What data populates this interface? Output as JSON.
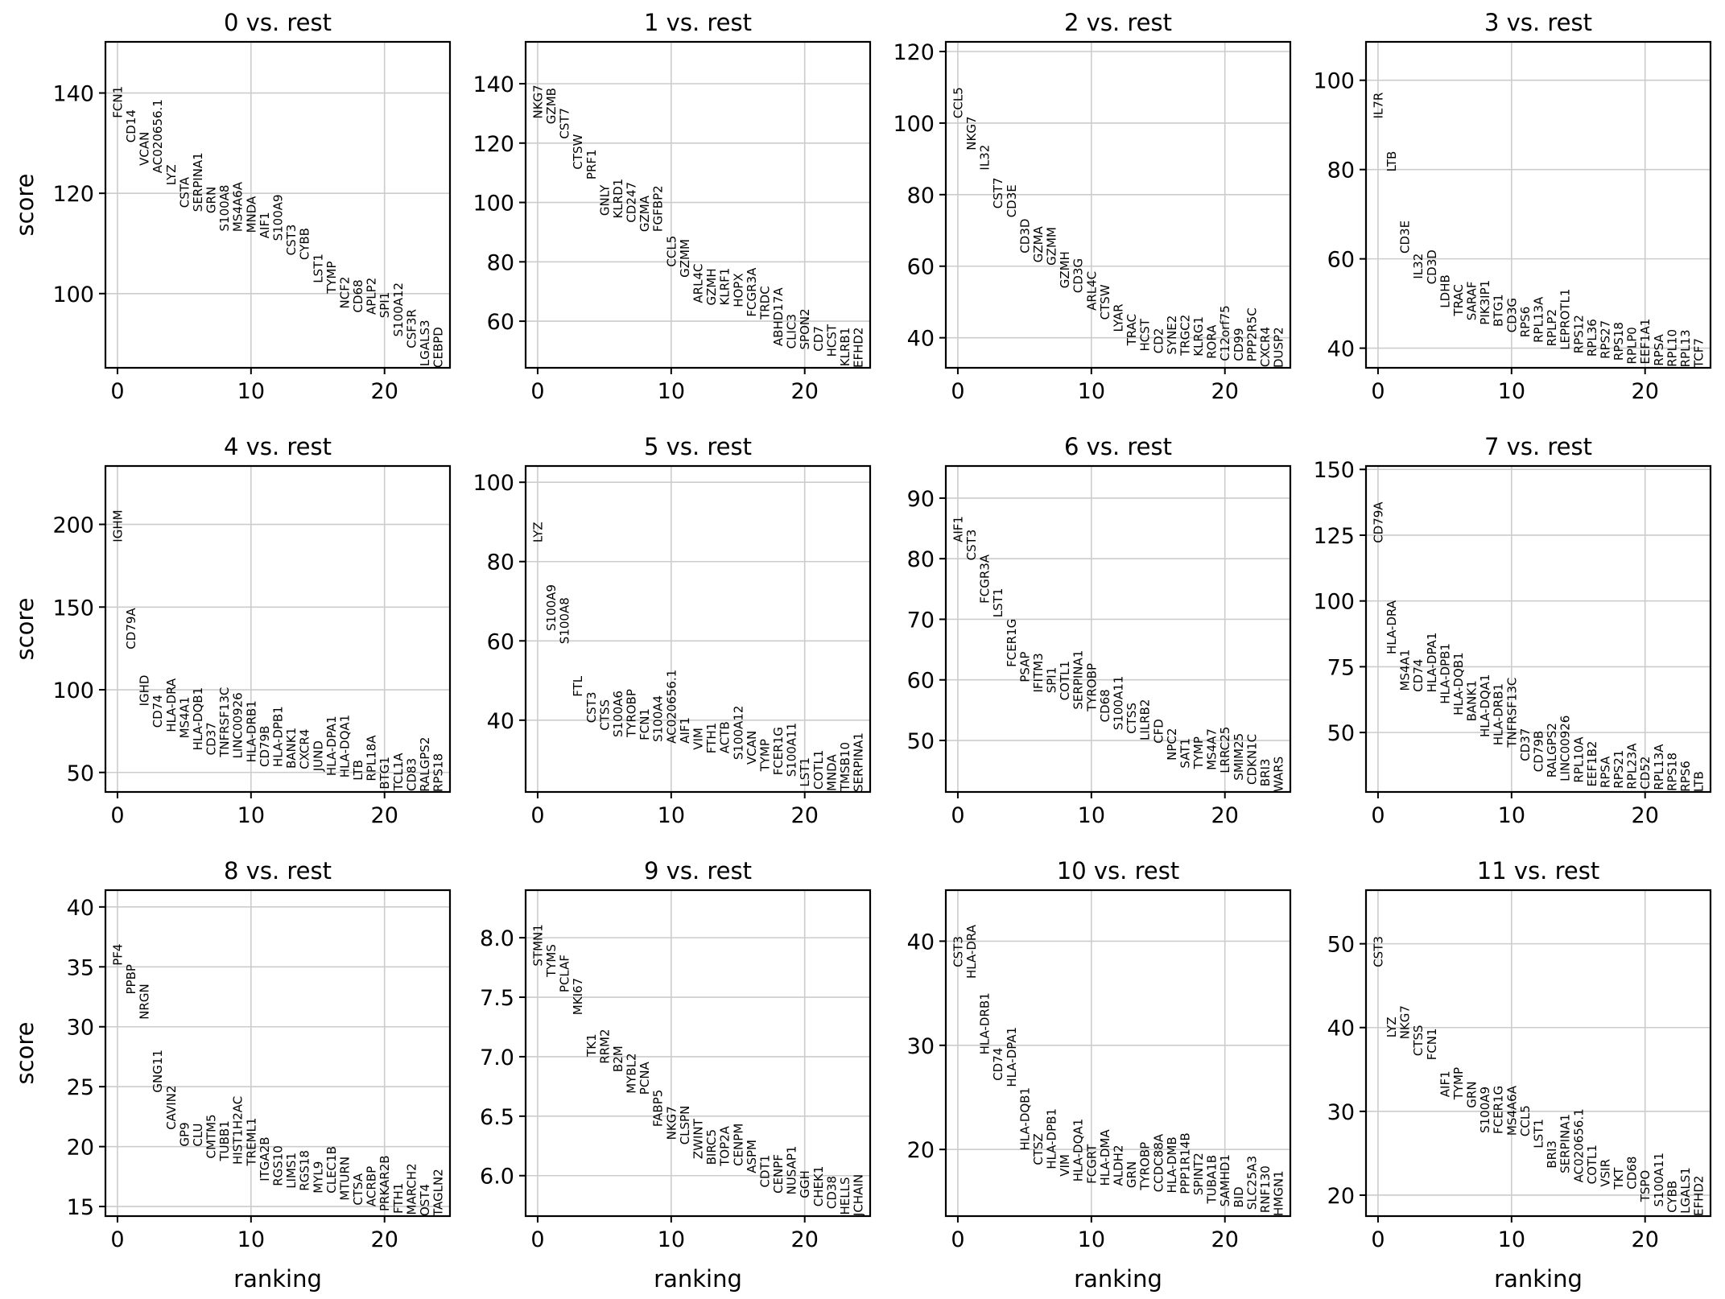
{
  "figure": {
    "x_axis_label": "ranking",
    "y_axis_label": "score",
    "text_color": "#000000",
    "grid_color": "#cccccc",
    "background": "#ffffff"
  },
  "chart_data": [
    {
      "type": "scatter",
      "title": "0 vs. rest",
      "xlabel": "",
      "ylabel": "score",
      "xlim": [
        -0.9,
        24.9
      ],
      "ylim": [
        85.2,
        150.2
      ],
      "xticks": [
        0,
        10,
        20
      ],
      "yticks": [
        100,
        120,
        140
      ],
      "grid": true,
      "genes": [
        "FCN1",
        "CD14",
        "VCAN",
        "AC020656.1",
        "LYZ",
        "CSTA",
        "SERPINA1",
        "GRN",
        "S100A8",
        "MS4A6A",
        "MNDA",
        "AIF1",
        "S100A9",
        "CST3",
        "CYBB",
        "LST1",
        "TYMP",
        "NCF2",
        "CD68",
        "APLP2",
        "SPI1",
        "S100A12",
        "CSF3R",
        "LGALS3",
        "CEBPD"
      ],
      "scores": [
        135.0,
        130.1,
        125.5,
        124.0,
        121.6,
        117.1,
        116.3,
        116.0,
        112.4,
        112.3,
        112.1,
        111.0,
        110.5,
        107.6,
        106.7,
        102.1,
        100.0,
        97.0,
        96.2,
        95.8,
        95.1,
        91.4,
        89.1,
        85.5,
        85.2
      ]
    },
    {
      "type": "scatter",
      "title": "1 vs. rest",
      "xlabel": "",
      "ylabel": "",
      "xlim": [
        -0.9,
        24.9
      ],
      "ylim": [
        44.3,
        154.1
      ],
      "xticks": [
        0,
        10,
        20
      ],
      "yticks": [
        60,
        80,
        100,
        120,
        140
      ],
      "grid": true,
      "genes": [
        "NKG7",
        "GZMB",
        "CST7",
        "CTSW",
        "PRF1",
        "GNLY",
        "KLRD1",
        "CD247",
        "GZMA",
        "FGFBP2",
        "CCL5",
        "GZMM",
        "ARL4C",
        "GZMH",
        "KLRF1",
        "HOPX",
        "FCGR3A",
        "TRDC",
        "ABHD17A",
        "CLIC3",
        "SPON2",
        "CD7",
        "HCST",
        "KLRB1",
        "EFHD2"
      ],
      "scores": [
        128.2,
        126.4,
        121.4,
        111.1,
        107.7,
        95.5,
        94.6,
        93.2,
        90.1,
        90.1,
        78.3,
        74.7,
        66.1,
        65.3,
        65.3,
        64.7,
        61.5,
        60.6,
        51.6,
        50.7,
        50.4,
        49.8,
        48.0,
        44.8,
        44.3
      ]
    },
    {
      "type": "scatter",
      "title": "2 vs. rest",
      "xlabel": "",
      "ylabel": "",
      "xlim": [
        -0.9,
        24.9
      ],
      "ylim": [
        31.6,
        122.7
      ],
      "xticks": [
        0,
        10,
        20
      ],
      "yticks": [
        40,
        60,
        80,
        100,
        120
      ],
      "grid": true,
      "genes": [
        "CCL5",
        "NKG7",
        "IL32",
        "CST7",
        "CD3E",
        "CD3D",
        "GZMA",
        "GZMM",
        "GZMH",
        "CD3G",
        "ARL4C",
        "CTSW",
        "LYAR",
        "TRAC",
        "HCST",
        "CD2",
        "SYNE2",
        "TRGC2",
        "KLRG1",
        "RORA",
        "C12orf75",
        "CD99",
        "PPP2R5C",
        "CXCR4",
        "DUSP2"
      ],
      "scores": [
        101.3,
        92.4,
        86.8,
        76.1,
        73.6,
        63.6,
        61.0,
        60.2,
        53.8,
        52.5,
        47.6,
        45.0,
        41.6,
        37.8,
        36.2,
        35.6,
        35.3,
        35.0,
        34.8,
        34.1,
        33.5,
        33.5,
        33.3,
        31.8,
        31.6
      ]
    },
    {
      "type": "scatter",
      "title": "3 vs. rest",
      "xlabel": "",
      "ylabel": "",
      "xlim": [
        -0.9,
        24.9
      ],
      "ylim": [
        35.6,
        108.6
      ],
      "xticks": [
        0,
        10,
        20
      ],
      "yticks": [
        40,
        60,
        80,
        100
      ],
      "grid": true,
      "genes": [
        "IL7R",
        "LTB",
        "CD3E",
        "IL32",
        "CD3D",
        "LDHB",
        "TRAC",
        "SARAF",
        "PIK3IP1",
        "BTG1",
        "CD3G",
        "RPS6",
        "RPL13A",
        "RPLP2",
        "LEPROTL1",
        "RPS12",
        "RPL36",
        "RPS27",
        "RPS18",
        "RPLP0",
        "EEF1A1",
        "RPSA",
        "RPL10",
        "RPL13",
        "TCF7"
      ],
      "scores": [
        91.4,
        79.5,
        61.2,
        55.5,
        54.3,
        49.0,
        47.2,
        46.2,
        45.2,
        44.8,
        43.5,
        42.4,
        41.2,
        40.4,
        39.6,
        38.8,
        38.1,
        37.6,
        37.2,
        36.4,
        36.4,
        36.0,
        35.8,
        35.7,
        35.6
      ]
    },
    {
      "type": "scatter",
      "title": "4 vs. rest",
      "xlabel": "",
      "ylabel": "score",
      "xlim": [
        -0.9,
        24.9
      ],
      "ylim": [
        38.2,
        235.3
      ],
      "xticks": [
        0,
        10,
        20
      ],
      "yticks": [
        50,
        100,
        150,
        200
      ],
      "grid": true,
      "genes": [
        "IGHM",
        "CD79A",
        "IGHD",
        "CD74",
        "HLA-DRA",
        "MS4A1",
        "HLA-DQB1",
        "CD37",
        "TNFRSF13C",
        "LINC00926",
        "HLA-DRB1",
        "CD79B",
        "HLA-DPB1",
        "BANK1",
        "CXCR4",
        "JUND",
        "HLA-DPA1",
        "HLA-DQA1",
        "LTB",
        "RPL18A",
        "BTG1",
        "TCL1A",
        "CD83",
        "RALGPS2",
        "RPS18"
      ],
      "scores": [
        189.2,
        124.5,
        90.1,
        77.0,
        74.3,
        70.6,
        63.3,
        60.4,
        59.2,
        58.4,
        56.0,
        53.3,
        53.3,
        52.3,
        51.9,
        50.7,
        47.9,
        46.8,
        45.1,
        44.7,
        39.8,
        39.0,
        38.7,
        38.3,
        38.2
      ]
    },
    {
      "type": "scatter",
      "title": "5 vs. rest",
      "xlabel": "",
      "ylabel": "",
      "xlim": [
        -0.9,
        24.9
      ],
      "ylim": [
        21.9,
        104.1
      ],
      "xticks": [
        0,
        10,
        20
      ],
      "yticks": [
        40,
        60,
        80,
        100
      ],
      "grid": true,
      "genes": [
        "LYZ",
        "S100A9",
        "S100A8",
        "FTL",
        "CST3",
        "CTSS",
        "S100A6",
        "TYROBP",
        "FCN1",
        "S100A4",
        "AC020656.1",
        "AIF1",
        "VIM",
        "FTH1",
        "ACTB",
        "S100A12",
        "VCAN",
        "TYMP",
        "FCER1G",
        "S100A11",
        "LST1",
        "COTL1",
        "MNDA",
        "TMSB10",
        "SERPINA1"
      ],
      "scores": [
        84.8,
        62.5,
        59.2,
        45.9,
        39.3,
        37.4,
        35.7,
        35.7,
        34.9,
        34.5,
        34.1,
        34.1,
        32.5,
        31.6,
        31.6,
        30.0,
        28.8,
        27.1,
        26.1,
        25.7,
        23.2,
        22.5,
        22.1,
        22.1,
        21.9
      ]
    },
    {
      "type": "scatter",
      "title": "6 vs. rest",
      "xlabel": "",
      "ylabel": "",
      "xlim": [
        -0.9,
        24.9
      ],
      "ylim": [
        41.5,
        95.3
      ],
      "xticks": [
        0,
        10,
        20
      ],
      "yticks": [
        50,
        60,
        70,
        80,
        90
      ],
      "grid": true,
      "genes": [
        "AIF1",
        "CST3",
        "FCGR3A",
        "LST1",
        "FCER1G",
        "PSAP",
        "IFITM3",
        "SPI1",
        "COTL1",
        "SERPINA1",
        "TYROBP",
        "CD68",
        "S100A11",
        "CTSS",
        "LILRB2",
        "CFD",
        "NPC2",
        "SAT1",
        "TYMP",
        "MS4A7",
        "LRRC25",
        "SMIM25",
        "CDKN1C",
        "BRI3",
        "WARS"
      ],
      "scores": [
        82.7,
        79.7,
        72.6,
        70.3,
        62.1,
        59.6,
        57.9,
        57.8,
        56.6,
        55.1,
        54.8,
        53.0,
        51.7,
        51.1,
        50.0,
        49.5,
        46.7,
        45.4,
        45.3,
        45.1,
        44.6,
        43.4,
        42.7,
        42.4,
        41.5
      ]
    },
    {
      "type": "scatter",
      "title": "7 vs. rest",
      "xlabel": "",
      "ylabel": "",
      "xlim": [
        -0.9,
        24.9
      ],
      "ylim": [
        27.4,
        151.3
      ],
      "xticks": [
        0,
        10,
        20
      ],
      "yticks": [
        50,
        75,
        100,
        125,
        150
      ],
      "grid": true,
      "genes": [
        "CD79A",
        "HLA-DRA",
        "MS4A1",
        "CD74",
        "HLA-DPA1",
        "HLA-DPB1",
        "HLA-DQB1",
        "BANK1",
        "HLA-DQA1",
        "HLA-DRB1",
        "TNFRSF13C",
        "CD37",
        "CD79B",
        "RALGPS2",
        "LINC00926",
        "RPL10A",
        "EEF1B2",
        "RPSA",
        "RPS21",
        "RPL23A",
        "CD52",
        "RPL13A",
        "RPS18",
        "RPS6",
        "LTB"
      ],
      "scores": [
        122.0,
        79.7,
        65.8,
        65.4,
        65.2,
        60.8,
        56.5,
        54.2,
        48.2,
        45.1,
        44.3,
        39.1,
        35.0,
        32.8,
        31.4,
        30.9,
        29.4,
        28.9,
        28.7,
        28.4,
        28.4,
        28.1,
        27.7,
        27.5,
        27.4
      ]
    },
    {
      "type": "scatter",
      "title": "8 vs. rest",
      "xlabel": "ranking",
      "ylabel": "score",
      "xlim": [
        -0.9,
        24.9
      ],
      "ylim": [
        14.2,
        41.4
      ],
      "xticks": [
        0,
        10,
        20
      ],
      "yticks": [
        15,
        20,
        25,
        30,
        35,
        40
      ],
      "grid": true,
      "genes": [
        "PF4",
        "PPBP",
        "NRGN",
        "GNG11",
        "CAVIN2",
        "GP9",
        "CLU",
        "CMTM5",
        "TUBB1",
        "HIST1H2AC",
        "TREML1",
        "ITGA2B",
        "RGS10",
        "LIMS1",
        "RGS18",
        "MYL9",
        "CLEC1B",
        "MTURN",
        "CTSA",
        "ACRBP",
        "PRKAR2B",
        "FTH1",
        "MARCH2",
        "OST4",
        "TAGLN2"
      ],
      "scores": [
        35.1,
        32.7,
        30.6,
        24.5,
        21.4,
        20.0,
        20.0,
        19.0,
        18.8,
        18.5,
        18.4,
        17.1,
        16.7,
        16.5,
        16.3,
        16.1,
        16.1,
        15.5,
        15.1,
        15.0,
        14.6,
        14.4,
        14.3,
        14.2,
        14.2
      ]
    },
    {
      "type": "scatter",
      "title": "9 vs. rest",
      "xlabel": "ranking",
      "ylabel": "",
      "xlim": [
        -0.9,
        24.9
      ],
      "ylim": [
        5.66,
        8.4
      ],
      "xticks": [
        0,
        10,
        20
      ],
      "yticks": [
        6.0,
        6.5,
        7.0,
        7.5,
        8.0
      ],
      "ytick_labels": [
        "6.0",
        "6.5",
        "7.0",
        "7.5",
        "8.0"
      ],
      "grid": true,
      "genes": [
        "STMN1",
        "TYMS",
        "PCLAF",
        "MKI67",
        "TK1",
        "RRM2",
        "B2M",
        "MYBL2",
        "PCNA",
        "FABP5",
        "NKG7",
        "CLSPN",
        "ZWINT",
        "BIRC5",
        "TOP2A",
        "CENPM",
        "ASPM",
        "CDT1",
        "CENPF",
        "NUSAP1",
        "GGH",
        "CHEK1",
        "CD38",
        "HELLS",
        "JCHAIN"
      ],
      "scores": [
        7.76,
        7.67,
        7.54,
        7.35,
        7.0,
        6.94,
        6.87,
        6.69,
        6.68,
        6.41,
        6.3,
        6.26,
        6.14,
        6.09,
        6.08,
        6.08,
        6.02,
        5.9,
        5.85,
        5.84,
        5.81,
        5.74,
        5.72,
        5.67,
        5.66
      ]
    },
    {
      "type": "scatter",
      "title": "10 vs. rest",
      "xlabel": "ranking",
      "ylabel": "",
      "xlim": [
        -0.9,
        24.9
      ],
      "ylim": [
        13.6,
        44.9
      ],
      "xticks": [
        0,
        10,
        20
      ],
      "yticks": [
        20,
        30,
        40
      ],
      "grid": true,
      "genes": [
        "CST3",
        "HLA-DRA",
        "HLA-DRB1",
        "CD74",
        "HLA-DPA1",
        "HLA-DQB1",
        "CTSZ",
        "HLA-DPB1",
        "VIM",
        "HLA-DQA1",
        "FCGRT",
        "HLA-DMA",
        "ALDH2",
        "GRN",
        "TYROBP",
        "CCDC88A",
        "HLA-DMB",
        "PPP1R14B",
        "SPINT2",
        "TUBA1B",
        "SAMHD1",
        "BID",
        "SLC25A3",
        "RNF130",
        "HMGN1"
      ],
      "scores": [
        37.5,
        36.4,
        29.1,
        26.6,
        26.0,
        19.9,
        18.5,
        18.1,
        17.4,
        16.9,
        16.7,
        16.5,
        16.5,
        16.3,
        16.1,
        15.9,
        15.8,
        15.7,
        15.6,
        14.8,
        14.5,
        14.4,
        14.2,
        13.9,
        13.6
      ]
    },
    {
      "type": "scatter",
      "title": "11 vs. rest",
      "xlabel": "ranking",
      "ylabel": "",
      "xlim": [
        -0.9,
        24.9
      ],
      "ylim": [
        17.5,
        56.4
      ],
      "xticks": [
        0,
        10,
        20
      ],
      "yticks": [
        20,
        30,
        40,
        50
      ],
      "grid": true,
      "genes": [
        "CST3",
        "LYZ",
        "NKG7",
        "CTSS",
        "FCN1",
        "AIF1",
        "TYMP",
        "GRN",
        "S100A9",
        "FCER1G",
        "MS4A6A",
        "CCL5",
        "LST1",
        "BRI3",
        "SERPINA1",
        "AC020656.1",
        "COTL1",
        "VSIR",
        "TKT",
        "CD68",
        "TSPO",
        "S100A11",
        "CYBB",
        "LGALS1",
        "EFHD2"
      ],
      "scores": [
        47.2,
        38.8,
        38.6,
        36.6,
        36.1,
        31.7,
        31.4,
        30.4,
        27.4,
        27.3,
        27.1,
        27.0,
        25.6,
        23.2,
        22.6,
        21.5,
        21.3,
        21.0,
        20.7,
        20.7,
        19.2,
        18.6,
        17.9,
        17.8,
        17.5
      ]
    }
  ]
}
